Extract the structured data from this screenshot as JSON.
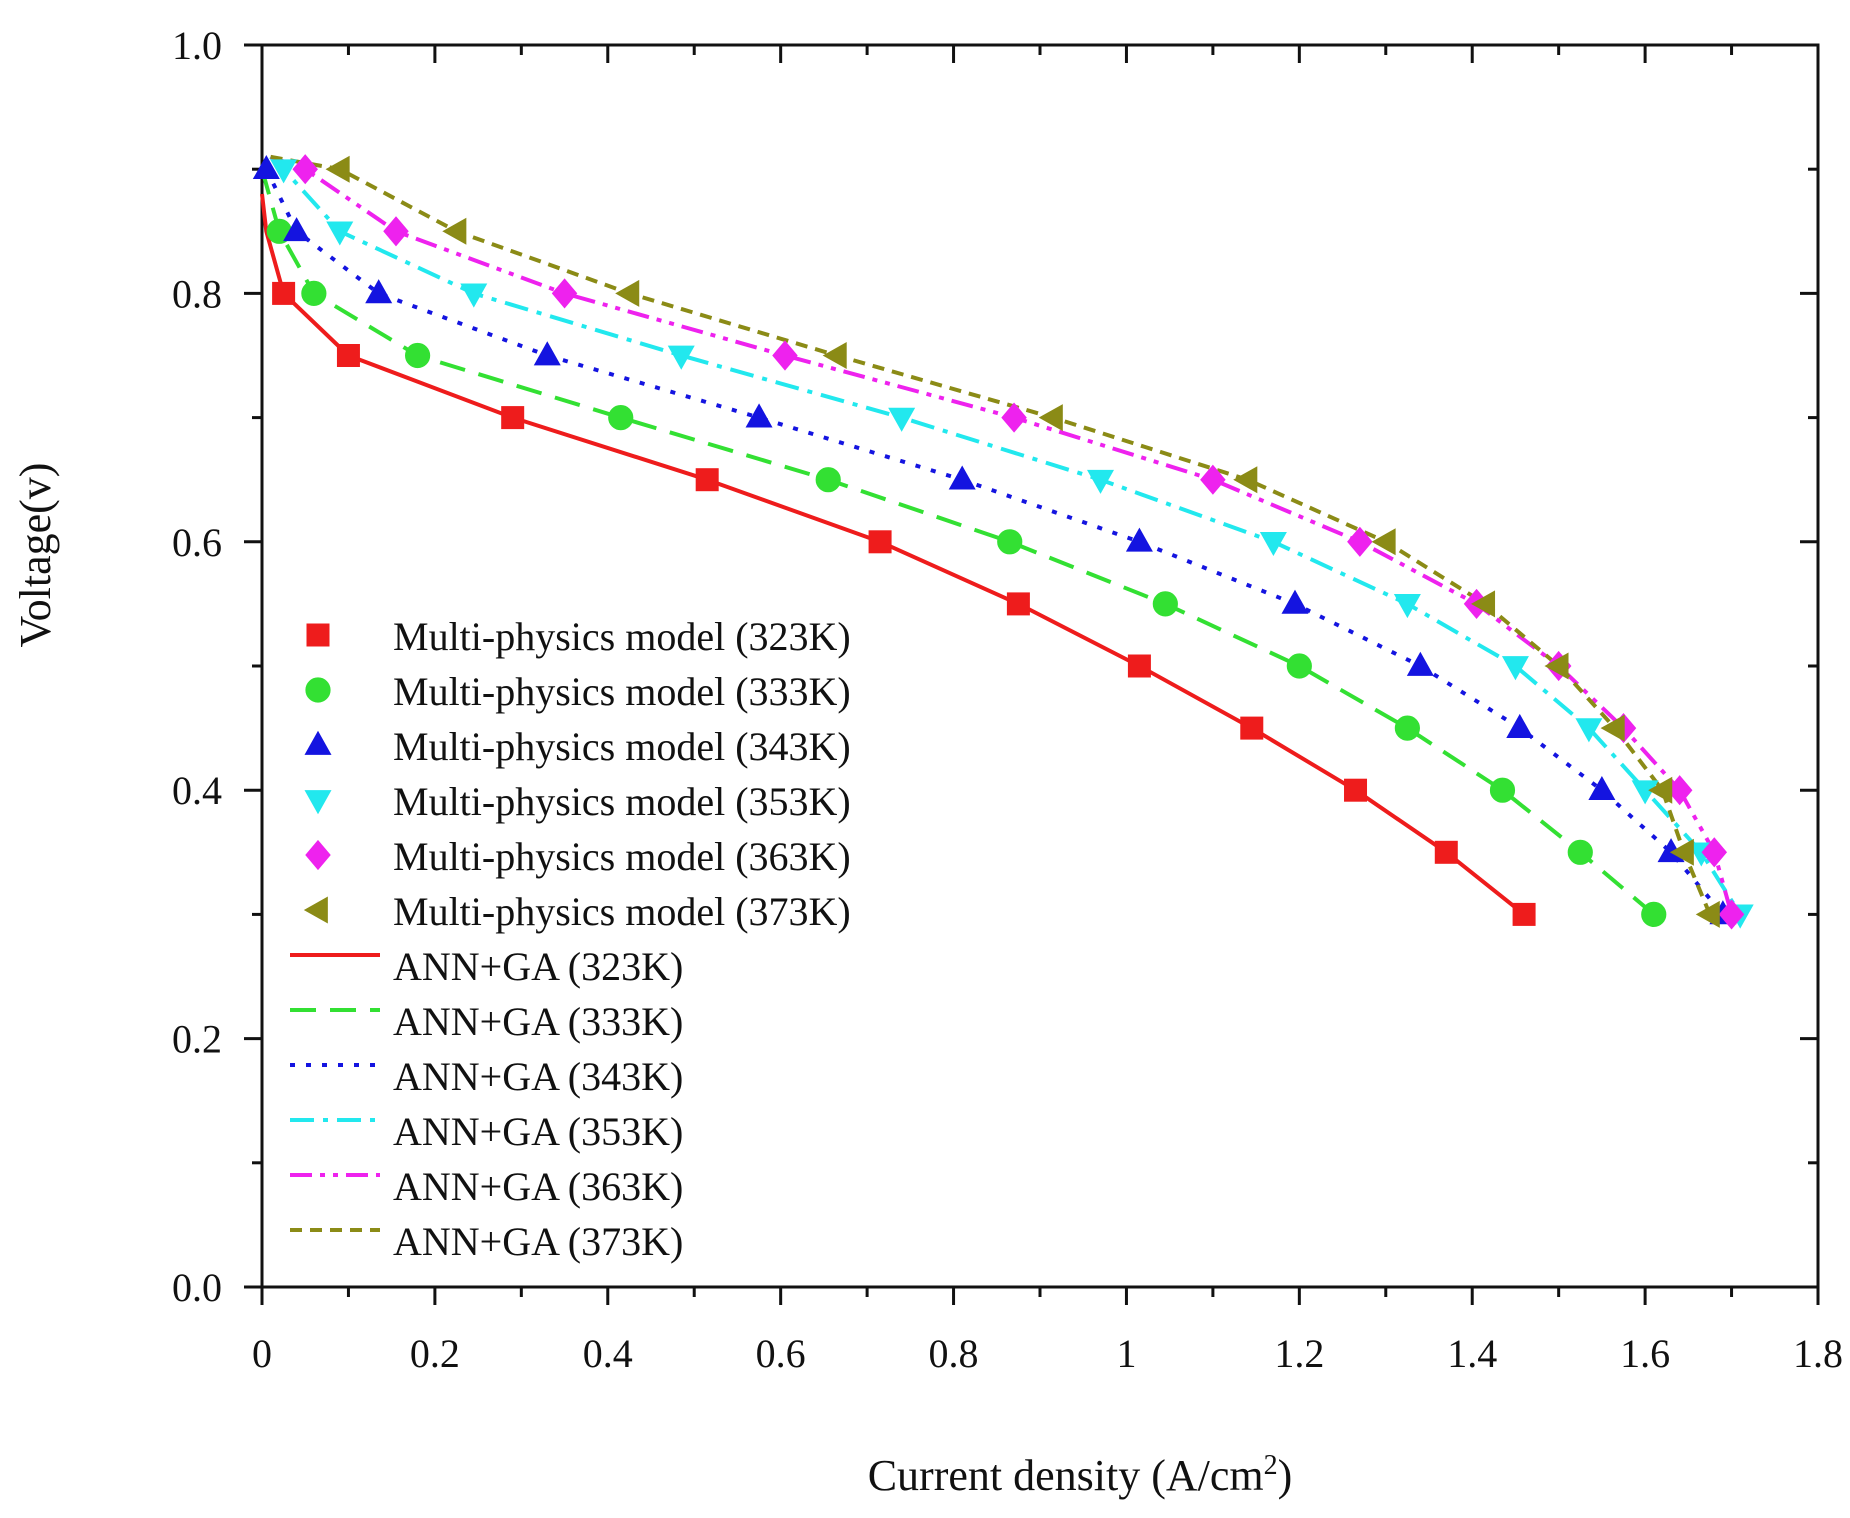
{
  "chart_data": {
    "type": "line",
    "title": "",
    "xlabel": "Current density (A/cm",
    "xlabel_sup": "2",
    "xlabel_end": ")",
    "ylabel": "Voltage(v)",
    "xlim": [
      0,
      1.8
    ],
    "ylim": [
      0,
      1.0
    ],
    "xticks": [
      0,
      0.2,
      0.4,
      0.6,
      0.8,
      1,
      1.2,
      1.4,
      1.6,
      1.8
    ],
    "xtick_labels": [
      "0",
      "0.2",
      "0.4",
      "0.6",
      "0.8",
      "1",
      "1.2",
      "1.4",
      "1.6",
      "1.8"
    ],
    "yticks": [
      0,
      0.2,
      0.4,
      0.6,
      0.8,
      1.0
    ],
    "ytick_labels": [
      "0.0",
      "0.2",
      "0.4",
      "0.6",
      "0.8",
      "1.0"
    ],
    "grid": false,
    "legend_position": "center-left",
    "scatter_series": [
      {
        "name": "Multi-physics model (323K)",
        "color": "#ee1c1c",
        "marker": "square",
        "x": [
          0.025,
          0.1,
          0.29,
          0.515,
          0.715,
          0.875,
          1.015,
          1.145,
          1.265,
          1.37,
          1.46
        ],
        "y": [
          0.8,
          0.75,
          0.7,
          0.65,
          0.6,
          0.55,
          0.5,
          0.45,
          0.4,
          0.35,
          0.3
        ]
      },
      {
        "name": "Multi-physics model (333K)",
        "color": "#33e033",
        "marker": "circle",
        "x": [
          0.02,
          0.06,
          0.18,
          0.415,
          0.655,
          0.865,
          1.045,
          1.2,
          1.325,
          1.435,
          1.525,
          1.61
        ],
        "y": [
          0.85,
          0.8,
          0.75,
          0.7,
          0.65,
          0.6,
          0.55,
          0.5,
          0.45,
          0.4,
          0.35,
          0.3
        ]
      },
      {
        "name": "Multi-physics model (343K)",
        "color": "#1414e0",
        "marker": "triangle-up",
        "x": [
          0.005,
          0.04,
          0.135,
          0.33,
          0.575,
          0.81,
          1.015,
          1.195,
          1.34,
          1.455,
          1.55,
          1.63,
          1.69
        ],
        "y": [
          0.9,
          0.85,
          0.8,
          0.75,
          0.7,
          0.65,
          0.6,
          0.55,
          0.5,
          0.45,
          0.4,
          0.35,
          0.3
        ]
      },
      {
        "name": "Multi-physics model (353K)",
        "color": "#22e8ee",
        "marker": "triangle-down",
        "x": [
          0.025,
          0.09,
          0.245,
          0.485,
          0.74,
          0.97,
          1.17,
          1.325,
          1.45,
          1.535,
          1.6,
          1.665,
          1.71
        ],
        "y": [
          0.9,
          0.85,
          0.8,
          0.75,
          0.7,
          0.65,
          0.6,
          0.55,
          0.5,
          0.45,
          0.4,
          0.35,
          0.3
        ]
      },
      {
        "name": "Multi-physics model (363K)",
        "color": "#ee22ee",
        "marker": "diamond",
        "x": [
          0.05,
          0.155,
          0.35,
          0.605,
          0.87,
          1.1,
          1.27,
          1.405,
          1.5,
          1.575,
          1.64,
          1.68,
          1.7
        ],
        "y": [
          0.9,
          0.85,
          0.8,
          0.75,
          0.7,
          0.65,
          0.6,
          0.55,
          0.5,
          0.45,
          0.4,
          0.35,
          0.3
        ]
      },
      {
        "name": "Multi-physics model (373K)",
        "color": "#8b8b16",
        "marker": "triangle-left",
        "x": [
          0.09,
          0.225,
          0.425,
          0.665,
          0.915,
          1.14,
          1.3,
          1.415,
          1.5,
          1.565,
          1.62,
          1.645,
          1.675
        ],
        "y": [
          0.9,
          0.85,
          0.8,
          0.75,
          0.7,
          0.65,
          0.6,
          0.55,
          0.5,
          0.45,
          0.4,
          0.35,
          0.3
        ]
      }
    ],
    "line_series": [
      {
        "name": "ANN+GA (323K)",
        "color": "#ee1c1c",
        "dash": "solid",
        "x": [
          0,
          0.005,
          0.025,
          0.1,
          0.29,
          0.515,
          0.715,
          0.875,
          1.015,
          1.145,
          1.265,
          1.37,
          1.46
        ],
        "y": [
          0.88,
          0.85,
          0.8,
          0.75,
          0.7,
          0.65,
          0.6,
          0.55,
          0.5,
          0.45,
          0.4,
          0.35,
          0.3
        ]
      },
      {
        "name": "ANN+GA (333K)",
        "color": "#33e033",
        "dash": "dash",
        "x": [
          0,
          0.02,
          0.06,
          0.18,
          0.415,
          0.655,
          0.865,
          1.045,
          1.2,
          1.325,
          1.435,
          1.525,
          1.61
        ],
        "y": [
          0.9,
          0.85,
          0.8,
          0.75,
          0.7,
          0.65,
          0.6,
          0.55,
          0.5,
          0.45,
          0.4,
          0.35,
          0.3
        ]
      },
      {
        "name": "ANN+GA (343K)",
        "color": "#1414e0",
        "dash": "dot",
        "x": [
          0.005,
          0.04,
          0.135,
          0.33,
          0.575,
          0.81,
          1.015,
          1.195,
          1.34,
          1.455,
          1.55,
          1.63,
          1.69
        ],
        "y": [
          0.9,
          0.85,
          0.8,
          0.75,
          0.7,
          0.65,
          0.6,
          0.55,
          0.5,
          0.45,
          0.4,
          0.35,
          0.3
        ]
      },
      {
        "name": "ANN+GA (353K)",
        "color": "#22e8ee",
        "dash": "dashdot",
        "x": [
          0.01,
          0.025,
          0.09,
          0.245,
          0.485,
          0.74,
          0.97,
          1.17,
          1.325,
          1.45,
          1.535,
          1.6,
          1.665,
          1.71
        ],
        "y": [
          0.91,
          0.9,
          0.85,
          0.8,
          0.75,
          0.7,
          0.65,
          0.6,
          0.55,
          0.5,
          0.45,
          0.4,
          0.35,
          0.3
        ]
      },
      {
        "name": "ANN+GA (363K)",
        "color": "#ee22ee",
        "dash": "dashdotdot",
        "x": [
          0.01,
          0.05,
          0.155,
          0.35,
          0.605,
          0.87,
          1.1,
          1.27,
          1.405,
          1.5,
          1.575,
          1.64,
          1.68,
          1.7
        ],
        "y": [
          0.91,
          0.9,
          0.85,
          0.8,
          0.75,
          0.7,
          0.65,
          0.6,
          0.55,
          0.5,
          0.45,
          0.4,
          0.35,
          0.3
        ]
      },
      {
        "name": "ANN+GA (373K)",
        "color": "#8b8b16",
        "dash": "shortdash",
        "x": [
          0.01,
          0.09,
          0.225,
          0.425,
          0.665,
          0.915,
          1.14,
          1.3,
          1.415,
          1.5,
          1.565,
          1.62,
          1.645,
          1.675
        ],
        "y": [
          0.91,
          0.9,
          0.85,
          0.8,
          0.75,
          0.7,
          0.65,
          0.6,
          0.55,
          0.5,
          0.45,
          0.4,
          0.35,
          0.3
        ]
      }
    ]
  }
}
